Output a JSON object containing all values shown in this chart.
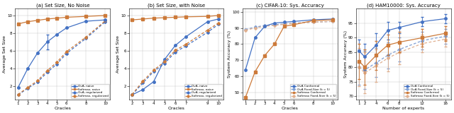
{
  "blue": "#4472c4",
  "orange": "#cc7a3a",
  "blue_light": "#7f9fd4",
  "orange_light": "#e0b090",
  "panel_a": {
    "title": "(a) Set Size, No Noise",
    "xlabel": "Oracles",
    "ylabel": "Average Set Size",
    "xlim": [
      0.7,
      10.5
    ],
    "ylim": [
      0.5,
      10.8
    ],
    "xticks": [
      1,
      2,
      3,
      4,
      5,
      6,
      8,
      10
    ],
    "yticks": [
      2,
      4,
      6,
      8,
      10
    ],
    "ova_naive_x": [
      1,
      2,
      3,
      4,
      5,
      6,
      8,
      10
    ],
    "ova_naive_y": [
      1.85,
      4.0,
      5.75,
      7.0,
      7.85,
      8.6,
      9.35,
      9.5
    ],
    "ova_naive_err": [
      0.0,
      0.0,
      0.0,
      0.85,
      0.0,
      0.0,
      0.0,
      0.0
    ],
    "softmax_naive_x": [
      1,
      2,
      3,
      4,
      5,
      6,
      8,
      10
    ],
    "softmax_naive_y": [
      9.05,
      9.3,
      9.45,
      9.6,
      9.7,
      9.8,
      9.9,
      10.0
    ],
    "ova_reg_x": [
      1,
      2,
      3,
      4,
      5,
      6,
      8,
      10
    ],
    "ova_reg_y": [
      1.0,
      1.75,
      2.45,
      3.55,
      4.5,
      5.7,
      7.4,
      9.3
    ],
    "softmax_reg_x": [
      1,
      2,
      3,
      4,
      5,
      6,
      8,
      10
    ],
    "softmax_reg_y": [
      1.05,
      1.85,
      2.6,
      3.75,
      4.7,
      5.9,
      7.55,
      9.4
    ],
    "legend_loc": "lower right"
  },
  "panel_b": {
    "title": "(b) Set Size, with Noise",
    "xlabel": "Oracles",
    "ylabel": "Average Set Size",
    "xlim": [
      1.7,
      10.5
    ],
    "ylim": [
      0.5,
      10.8
    ],
    "xticks": [
      2,
      3,
      4,
      5,
      6,
      7,
      9,
      10
    ],
    "yticks": [
      2,
      4,
      6,
      8,
      10
    ],
    "ova_naive_x": [
      2,
      3,
      4,
      5,
      6,
      7,
      9,
      10
    ],
    "ova_naive_y": [
      1.0,
      1.6,
      2.5,
      5.0,
      6.6,
      7.6,
      9.3,
      9.6
    ],
    "softmax_naive_x": [
      2,
      3,
      4,
      5,
      6,
      7,
      9,
      10
    ],
    "softmax_naive_y": [
      9.5,
      9.6,
      9.7,
      9.75,
      9.8,
      9.85,
      9.9,
      10.0
    ],
    "ova_reg_x": [
      2,
      3,
      4,
      5,
      6,
      7,
      9,
      10
    ],
    "ova_reg_y": [
      1.0,
      2.35,
      3.65,
      4.55,
      5.85,
      6.55,
      8.1,
      9.0
    ],
    "softmax_reg_x": [
      2,
      3,
      4,
      5,
      6,
      7,
      9,
      10
    ],
    "softmax_reg_y": [
      1.05,
      2.55,
      3.8,
      4.75,
      6.05,
      6.75,
      8.35,
      9.15
    ],
    "legend_loc": "lower right"
  },
  "panel_c": {
    "title": "(c) CIFAR-10: Sys. Accuracy",
    "xlabel": "Oracles",
    "ylabel": "System Accuracy (%)",
    "xlim": [
      0.7,
      10.5
    ],
    "ylim": [
      46,
      102
    ],
    "xticks": [
      1,
      2,
      3,
      4,
      5,
      6,
      8,
      10
    ],
    "yticks": [
      50,
      60,
      70,
      80,
      90,
      100
    ],
    "ova_conf_x": [
      1,
      2,
      3,
      4,
      5,
      6,
      8,
      10
    ],
    "ova_conf_y": [
      64,
      84,
      91,
      93,
      93.5,
      94,
      95,
      95.5
    ],
    "ova_conf_err": [
      0,
      0,
      0,
      0,
      0,
      0,
      0,
      0
    ],
    "softmax_conf_x": [
      1,
      2,
      3,
      4,
      5,
      6,
      8,
      10
    ],
    "softmax_conf_y": [
      47,
      63,
      73,
      80,
      91,
      92,
      94.5,
      95
    ],
    "softmax_conf_err": [
      0,
      0,
      0,
      0,
      0,
      0,
      0,
      0
    ],
    "ova_fixed_x": [
      1,
      2,
      3,
      4,
      5,
      6,
      8,
      10
    ],
    "ova_fixed_y": [
      89,
      90.5,
      91.5,
      92,
      92.5,
      93,
      93.5,
      94
    ],
    "softmax_fixed_x": [
      1,
      2,
      3,
      4,
      5,
      6,
      8,
      10
    ],
    "softmax_fixed_y": [
      88.5,
      90,
      91,
      91.5,
      92.2,
      92.8,
      93.5,
      94
    ],
    "legend_loc": "lower right"
  },
  "panel_d": {
    "title": "(d) HAM10000: Sys. Accuracy",
    "xlabel": "Number of experts",
    "ylabel": "System Accuracy (%)",
    "xlim": [
      0.5,
      17
    ],
    "ylim": [
      69,
      100
    ],
    "xticks": [
      1,
      2,
      4,
      6,
      8,
      12,
      16
    ],
    "yticks": [
      70,
      75,
      80,
      85,
      90,
      95
    ],
    "ova_conf_x": [
      1,
      2,
      4,
      6,
      8,
      12,
      16
    ],
    "ova_conf_y": [
      85.5,
      83.5,
      87.5,
      92.5,
      93.5,
      95.5,
      96.5
    ],
    "ova_conf_err": [
      4.0,
      4.5,
      4.0,
      3.0,
      2.0,
      1.5,
      1.5
    ],
    "softmax_conf_x": [
      1,
      2,
      4,
      6,
      8,
      12,
      16
    ],
    "softmax_conf_y": [
      82,
      80,
      84,
      87.5,
      88.5,
      90,
      91.5
    ],
    "softmax_conf_err": [
      6.0,
      6.0,
      5.0,
      3.5,
      3.5,
      3.0,
      2.5
    ],
    "ova_fixed_x": [
      1,
      2,
      4,
      6,
      8,
      12,
      16
    ],
    "ova_fixed_y": [
      80,
      79,
      81.5,
      84,
      86,
      89,
      90.5
    ],
    "ova_fixed_err": [
      6.0,
      6.5,
      5.0,
      4.5,
      4.0,
      3.0,
      2.5
    ],
    "softmax_fixed_x": [
      1,
      2,
      4,
      6,
      8,
      12,
      16
    ],
    "softmax_fixed_y": [
      80,
      78,
      80.5,
      83,
      85,
      88,
      89.5
    ],
    "softmax_fixed_err": [
      6.5,
      7.0,
      5.5,
      4.5,
      4.0,
      3.0,
      2.5
    ],
    "legend_loc": "lower right"
  }
}
